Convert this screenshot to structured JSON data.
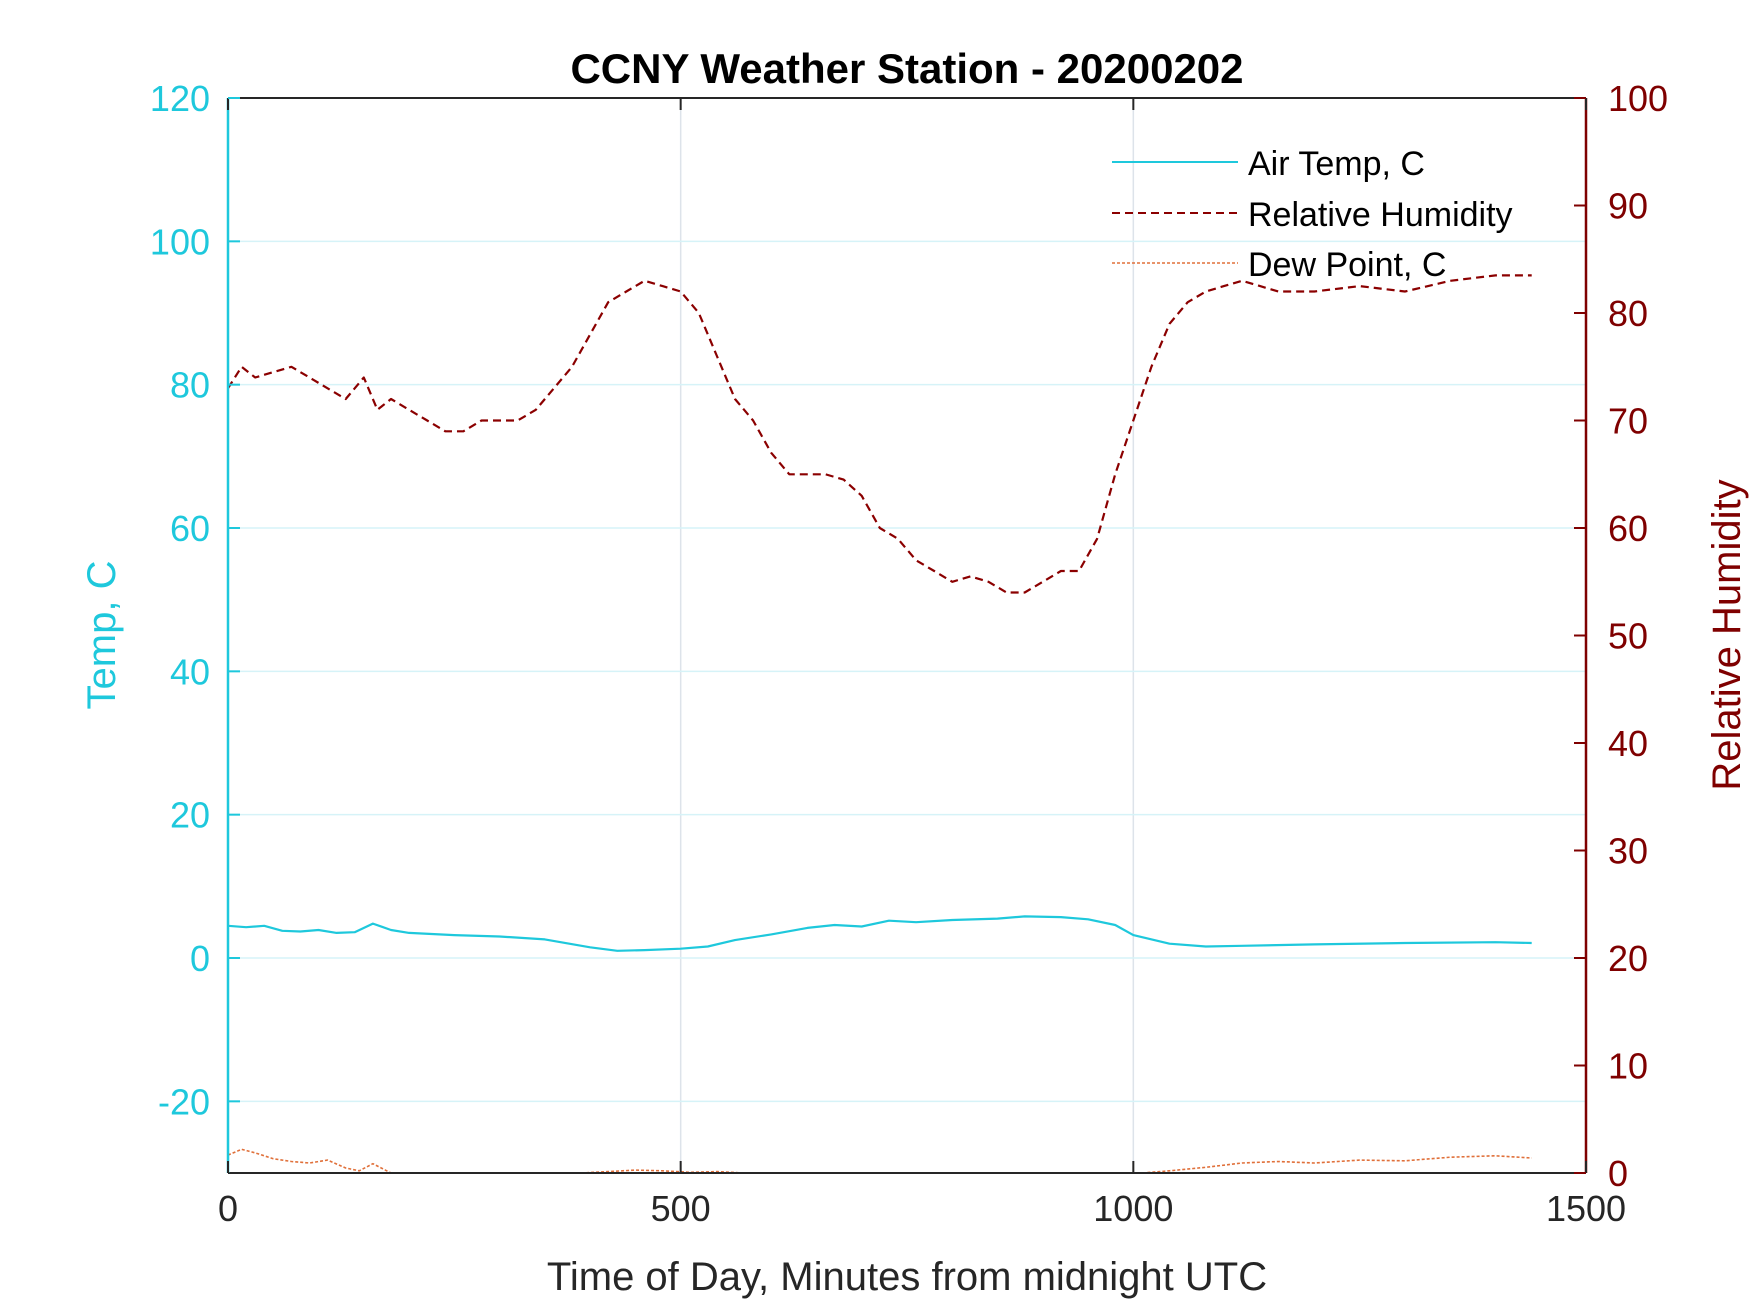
{
  "chart_data": {
    "type": "line",
    "title": "CCNY Weather Station - 20200202",
    "xlabel": "Time of Day, Minutes from midnight UTC",
    "ylabel_left": "Temp, C",
    "ylabel_right": "Relative Humidity",
    "xlim": [
      0,
      1500
    ],
    "ylim_left": [
      -30,
      120
    ],
    "ylim_right": [
      0,
      100
    ],
    "x_ticks": [
      0,
      500,
      1000,
      1500
    ],
    "y_ticks_left": [
      -20,
      0,
      20,
      40,
      60,
      80,
      100,
      120
    ],
    "y_ticks_right": [
      0,
      10,
      20,
      30,
      40,
      50,
      60,
      70,
      80,
      90,
      100
    ],
    "legend_position": "top-right",
    "grid": true,
    "colors": {
      "left_axis": "#1ec8dc",
      "right_axis": "#7f0000",
      "air_temp": "#1ec8dc",
      "humidity": "#8b0000",
      "dew_point": "#e0703a",
      "grid_x": "#dde3ea",
      "grid_y": "#d6f3f8"
    },
    "series": [
      {
        "name": "Air Temp, C",
        "axis": "left",
        "style": "solid",
        "x": [
          0,
          20,
          40,
          60,
          80,
          100,
          120,
          140,
          160,
          180,
          200,
          250,
          300,
          350,
          400,
          430,
          460,
          500,
          530,
          560,
          600,
          640,
          670,
          700,
          730,
          760,
          800,
          850,
          880,
          920,
          950,
          980,
          1000,
          1040,
          1080,
          1120,
          1200,
          1300,
          1400,
          1440
        ],
        "values": [
          4.5,
          4.3,
          4.5,
          3.8,
          3.7,
          3.9,
          3.5,
          3.6,
          4.8,
          3.9,
          3.5,
          3.2,
          3.0,
          2.6,
          1.5,
          1.0,
          1.1,
          1.3,
          1.6,
          2.5,
          3.3,
          4.2,
          4.6,
          4.4,
          5.2,
          5.0,
          5.3,
          5.5,
          5.8,
          5.7,
          5.4,
          4.6,
          3.2,
          2.0,
          1.6,
          1.7,
          1.9,
          2.1,
          2.2,
          2.1
        ]
      },
      {
        "name": "Relative Humidity",
        "axis": "right",
        "style": "dashed",
        "x": [
          0,
          15,
          30,
          50,
          70,
          90,
          110,
          130,
          150,
          165,
          180,
          200,
          220,
          240,
          260,
          280,
          300,
          320,
          340,
          360,
          380,
          400,
          420,
          440,
          460,
          480,
          500,
          520,
          540,
          560,
          580,
          600,
          620,
          640,
          660,
          680,
          700,
          720,
          740,
          760,
          780,
          800,
          820,
          840,
          860,
          880,
          900,
          920,
          940,
          960,
          980,
          1000,
          1020,
          1040,
          1060,
          1080,
          1100,
          1120,
          1140,
          1160,
          1200,
          1250,
          1300,
          1350,
          1400,
          1440
        ],
        "values": [
          73,
          75,
          74,
          74.5,
          75,
          74,
          73,
          72,
          74,
          71,
          72,
          71,
          70,
          69,
          69,
          70,
          70,
          70,
          71,
          73,
          75,
          78,
          81,
          82,
          83,
          82.5,
          82,
          80,
          76,
          72,
          70,
          67,
          65,
          65,
          65,
          64.5,
          63,
          60,
          59,
          57,
          56,
          55,
          55.5,
          55,
          54,
          54,
          55,
          56,
          56,
          59,
          65,
          70,
          75,
          79,
          81,
          82,
          82.5,
          83,
          82.5,
          82,
          82,
          82.5,
          82,
          83,
          83.5,
          83.5
        ]
      },
      {
        "name": "Dew Point, C",
        "axis": "left",
        "style": "dotted",
        "segments": [
          {
            "x": [
              0,
              15,
              30,
              50,
              70,
              90,
              110,
              130,
              145,
              160,
              180
            ],
            "values": [
              -27.5,
              -26.7,
              -27.2,
              -28.0,
              -28.4,
              -28.6,
              -28.2,
              -29.3,
              -29.7,
              -28.7,
              -30.0
            ]
          },
          {
            "x": [
              390,
              420,
              450,
              480,
              510,
              540,
              570
            ],
            "values": [
              -30.0,
              -29.8,
              -29.6,
              -29.7,
              -29.9,
              -29.8,
              -30.0
            ]
          },
          {
            "x": [
              1010,
              1040,
              1080,
              1120,
              1160,
              1200,
              1250,
              1300,
              1350,
              1400,
              1440
            ],
            "values": [
              -30.0,
              -29.7,
              -29.2,
              -28.6,
              -28.4,
              -28.6,
              -28.2,
              -28.3,
              -27.8,
              -27.6,
              -27.9
            ]
          }
        ]
      }
    ]
  }
}
